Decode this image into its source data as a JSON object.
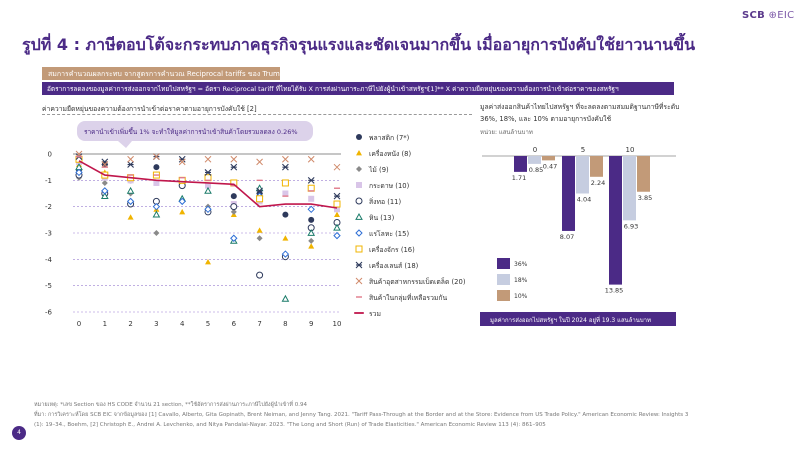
{
  "header": {
    "logo_main": "SCB",
    "logo_sub": "EIC"
  },
  "page_title": "รูปที่ 4 : ภาษีตอบโต้จะกระทบภาคธุรกิจรุนแรงและชัดเจนมากขึ้น เมื่ออายุการบังคับใช้ยาวนานขึ้น",
  "banner": {
    "tag": "สมการคำนวณผลกระทบ จากสูตรการคำนวณ Reciprocal tariffs ของ Trump",
    "formula": "อัตราการลดลงของมูลค่าการส่งออกจากไทยไปสหรัฐฯ = อัตรา Reciprocal tariff ที่ไทยได้รับ X การส่งผ่านภาระภาษีไปยังผู้นำเข้าสหรัฐฯ[1]** X ค่าความยืดหยุ่นของความต้องการนำเข้าต่อราคาของสหรัฐฯ"
  },
  "left_title": "ค่าความยืดหยุ่นของความต้องการนำเข้าต่อราคาตามอายุการบังคับใช้ [2]",
  "right_title": "มูลค่าส่งออกสินค้าไทยไปสหรัฐฯ ที่จะลดลงตามสมมติฐานภาษีที่ระดับ 36%, 18%, และ 10% ตามอายุการบังคับใช้",
  "right_unit": "หน่วย: แสนล้านบาท",
  "chart_data": [
    {
      "type": "scatter",
      "x": [
        0,
        1,
        2,
        3,
        4,
        5,
        6,
        7,
        8,
        9,
        10
      ],
      "xlim": [
        0,
        10
      ],
      "ylim": [
        -6,
        0
      ],
      "yticks": [
        0,
        -1,
        -2,
        -3,
        -4,
        -5,
        -6
      ],
      "grid": false,
      "legend_position": "right",
      "annotation": "ราคานำเข้าเพิ่มขึ้น 1% จะทำให้มูลค่าการนำเข้าสินค้าโดยรวมลดลง 0.26%",
      "series": [
        {
          "name": "พลาสติก (7*)",
          "marker": "filled-circle",
          "color": "#2e3a5c",
          "values": [
            -0.6,
            -0.4,
            -1.0,
            -0.5,
            -1.1,
            -0.9,
            -1.6,
            -1.5,
            -2.3,
            -2.5,
            -2.0
          ]
        },
        {
          "name": "เครื่องหนัง (8)",
          "marker": "filled-triangle",
          "color": "#f0b400",
          "values": [
            -0.4,
            -0.7,
            -2.4,
            -2.1,
            -2.2,
            -4.1,
            -2.3,
            -2.9,
            -3.2,
            -3.5,
            -2.3
          ]
        },
        {
          "name": "ไม้ (9)",
          "marker": "filled-diamond",
          "color": "#8a8a8a",
          "values": [
            -0.9,
            -1.1,
            -1.5,
            -3.0,
            -1.8,
            -2.0,
            -2.2,
            -3.2,
            -3.9,
            -3.3,
            -3.1
          ]
        },
        {
          "name": "กระดาษ (10)",
          "marker": "filled-square",
          "color": "#d9c5e8",
          "values": [
            -0.3,
            -0.9,
            -1.0,
            -1.1,
            -1.0,
            -1.2,
            -1.9,
            -1.8,
            -1.5,
            -1.7,
            -2.1
          ]
        },
        {
          "name": "สิ่งทอ (11)",
          "marker": "open-circle",
          "color": "#2e3a5c",
          "values": [
            -0.8,
            -1.5,
            -1.9,
            -1.8,
            -1.2,
            -2.2,
            -2.0,
            -4.6,
            -3.9,
            -2.8,
            -2.6
          ]
        },
        {
          "name": "หิน (13)",
          "marker": "open-triangle",
          "color": "#1b7c6a",
          "values": [
            -0.5,
            -1.6,
            -1.4,
            -2.3,
            -1.7,
            -1.4,
            -3.3,
            -1.3,
            -5.5,
            -3.0,
            -2.8
          ]
        },
        {
          "name": "แร่โลหะ (15)",
          "marker": "open-diamond",
          "color": "#2f6fd6",
          "values": [
            -0.7,
            -1.4,
            -1.8,
            -2.0,
            -1.8,
            -2.1,
            -3.2,
            -1.6,
            -3.8,
            -2.1,
            -3.1
          ]
        },
        {
          "name": "เครื่องจักร (16)",
          "marker": "open-square",
          "color": "#f0b400",
          "values": [
            -0.2,
            -0.8,
            -0.9,
            -0.8,
            -1.0,
            -0.9,
            -1.1,
            -1.7,
            -1.1,
            -1.3,
            -1.9
          ]
        },
        {
          "name": "เครื่องเลนส์ (18)",
          "marker": "asterisk",
          "color": "#2e3a5c",
          "values": [
            -0.1,
            -0.3,
            -0.4,
            -0.1,
            -0.2,
            -0.7,
            -0.5,
            -1.4,
            -0.5,
            -1.0,
            -1.6
          ]
        },
        {
          "name": "สินค้าอุตสาหกรรมเบ็ดเตล็ด (20)",
          "marker": "cross",
          "color": "#d08a6a",
          "values": [
            0.0,
            -0.4,
            -0.2,
            -0.1,
            -0.3,
            -0.2,
            -0.2,
            -0.3,
            -0.2,
            -0.2,
            -0.5
          ]
        },
        {
          "name": "สินค้าในกลุ่มที่เหลือรวมกัน",
          "marker": "dash",
          "color": "#e07a8a",
          "values": [
            -0.1,
            -0.5,
            -0.8,
            -0.8,
            -0.9,
            -1.0,
            -1.2,
            -1.0,
            -1.6,
            -1.4,
            -1.3
          ]
        },
        {
          "name": "รวม",
          "marker": "line",
          "color": "#c0174c",
          "values": [
            -0.26,
            -0.8,
            -0.9,
            -1.0,
            -1.05,
            -1.1,
            -1.15,
            -2.0,
            -1.9,
            -1.9,
            -2.05
          ]
        }
      ]
    },
    {
      "type": "bar",
      "categories": [
        "0",
        "5",
        "10"
      ],
      "ylim": [
        -14,
        0
      ],
      "legend_position": "bottom-left",
      "series": [
        {
          "name": "36%",
          "color": "#4b2a86",
          "values": [
            -1.71,
            -8.07,
            -13.85
          ]
        },
        {
          "name": "18%",
          "color": "#c6cde0",
          "values": [
            -0.85,
            -4.04,
            -6.93
          ]
        },
        {
          "name": "10%",
          "color": "#c29a78",
          "values": [
            -0.47,
            -2.24,
            -3.85
          ]
        }
      ],
      "value_labels": [
        [
          "1.71",
          "8.07",
          "13.85"
        ],
        [
          "0.85",
          "4.04",
          "6.93"
        ],
        [
          "0.47",
          "2.24",
          "3.85"
        ]
      ],
      "footer": "มูลค่าการส่งออกไปสหรัฐฯ ในปี 2024 อยู่ที่ 19.3 แสนล้านบาท"
    }
  ],
  "footnote": {
    "line1": "หมายเหตุ: *เลข Section ของ HS CODE จำนวน 21 section, **ใช้อัตราการส่งผ่านภาระภาษีไปยังผู้นำเข้าที่ 0.94",
    "line2": "ที่มา: การวิเคราะห์โดย SCB EIC จากข้อมูลของ [1] Cavallo, Alberto, Gita Gopinath, Brent Neiman, and Jenny Tang. 2021. \"Tariff Pass-Through at the Border and at the Store: Evidence from US Trade Policy.\" American Economic Review: Insights 3",
    "line3": "(1): 19–34., Boehm, [2] Christoph E., Andrei A. Levchenko, and Nitya Pandalai-Nayar. 2023. \"The Long and Short (Run) of Trade Elasticities.\" American Economic Review 113 (4): 861–905"
  },
  "page_number": "4"
}
